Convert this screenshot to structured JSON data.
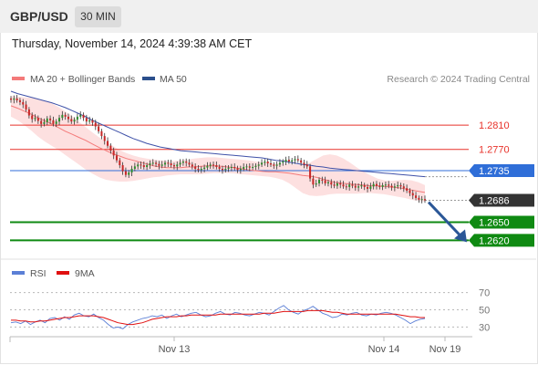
{
  "header": {
    "symbol": "GBP/USD",
    "timeframe": "30 MIN",
    "datetime": "Thursday, November 14, 2024 4:39:38 AM CET"
  },
  "colors": {
    "ma20": "#f47a7a",
    "bollinger_fill": "#fde0e0",
    "ma50": "#3f51a8",
    "ma50_legend": "#2b4f8c",
    "resistance": "#e8322a",
    "pivot": "#2f6ed8",
    "support": "#0f8a12",
    "current": "#333333",
    "candle_up": "#2f8c2f",
    "candle_down": "#c62828",
    "arrow": "#2b5797",
    "rsi": "#5b7fd6",
    "rsi_ma": "#e01010",
    "muted_text": "#888888"
  },
  "chart_data": [
    {
      "type": "candlestick",
      "title": "",
      "legend": [
        {
          "name": "MA 20 + Bollinger Bands",
          "color": "#f47a7a"
        },
        {
          "name": "MA 50",
          "color": "#2b4f8c"
        }
      ],
      "legend_position": "top-left",
      "watermark": "Research © 2024 Trading Central",
      "ylim": [
        1.2592,
        1.2884
      ],
      "x_ticks": [
        "Nov 13",
        "Nov 14",
        "Nov 19"
      ],
      "horizontal_levels": [
        {
          "label": "1.2810",
          "value": 1.281,
          "kind": "resistance"
        },
        {
          "label": "1.2770",
          "value": 1.277,
          "kind": "resistance"
        },
        {
          "label": "1.2735",
          "value": 1.2735,
          "kind": "pivot"
        },
        {
          "label": "1.2686",
          "value": 1.2686,
          "kind": "current"
        },
        {
          "label": "1.2650",
          "value": 1.265,
          "kind": "support"
        },
        {
          "label": "1.2620",
          "value": 1.262,
          "kind": "support"
        }
      ],
      "close": [
        1.2852,
        1.2854,
        1.2851,
        1.2848,
        1.2844,
        1.2836,
        1.2826,
        1.282,
        1.2822,
        1.2817,
        1.2812,
        1.2815,
        1.2821,
        1.2818,
        1.2812,
        1.2816,
        1.2822,
        1.2827,
        1.2824,
        1.282,
        1.2816,
        1.2819,
        1.2824,
        1.2827,
        1.2822,
        1.2816,
        1.2818,
        1.2814,
        1.2808,
        1.28,
        1.2792,
        1.2784,
        1.2776,
        1.2768,
        1.276,
        1.2752,
        1.2744,
        1.2734,
        1.2728,
        1.2732,
        1.2738,
        1.2742,
        1.2745,
        1.2744,
        1.2741,
        1.2744,
        1.2747,
        1.2748,
        1.2746,
        1.2743,
        1.2745,
        1.2748,
        1.2747,
        1.2744,
        1.2742,
        1.2745,
        1.2748,
        1.275,
        1.2748,
        1.2745,
        1.2742,
        1.2738,
        1.2736,
        1.2738,
        1.274,
        1.2743,
        1.2745,
        1.2744,
        1.2741,
        1.2738,
        1.2736,
        1.2738,
        1.274,
        1.2741,
        1.2739,
        1.2736,
        1.2738,
        1.2741,
        1.2742,
        1.274,
        1.2741,
        1.2743,
        1.2745,
        1.2748,
        1.275,
        1.2747,
        1.2745,
        1.2743,
        1.2745,
        1.2748,
        1.275,
        1.2753,
        1.275,
        1.2752,
        1.2754,
        1.2752,
        1.2748,
        1.2745,
        1.2742,
        1.2722,
        1.2712,
        1.2714,
        1.272,
        1.2719,
        1.2714,
        1.2716,
        1.2712,
        1.271,
        1.2714,
        1.2712,
        1.2709,
        1.2708,
        1.2712,
        1.271,
        1.2707,
        1.2709,
        1.2711,
        1.2708,
        1.2705,
        1.2709,
        1.2713,
        1.271,
        1.2708,
        1.2711,
        1.2712,
        1.271,
        1.2707,
        1.2709,
        1.2711,
        1.2709,
        1.2706,
        1.2702,
        1.2698,
        1.2694,
        1.269,
        1.2687,
        1.2688,
        1.2686
      ],
      "ma20": [
        1.2842,
        1.2838,
        1.2833,
        1.2828,
        1.2822,
        1.2817,
        1.2812,
        1.2806,
        1.28,
        1.2795,
        1.279,
        1.2785,
        1.2779,
        1.2773,
        1.2768,
        1.2763,
        1.2759,
        1.2755,
        1.2752,
        1.2749,
        1.2746,
        1.2743,
        1.2741,
        1.274,
        1.274,
        1.274,
        1.2741,
        1.2741,
        1.2742,
        1.2743,
        1.2743,
        1.2742,
        1.2741,
        1.274,
        1.2738,
        1.2736,
        1.2735,
        1.2734,
        1.2733,
        1.2733,
        1.2732,
        1.2731,
        1.2729,
        1.2727,
        1.2726,
        1.2724,
        1.2721,
        1.2718,
        1.2715,
        1.2714,
        1.2713,
        1.2712,
        1.2711,
        1.271,
        1.271,
        1.2709,
        1.2708,
        1.2707,
        1.2705,
        1.2703,
        1.2701,
        1.2699
      ],
      "ma50": [
        1.2866,
        1.2862,
        1.2859,
        1.2856,
        1.2853,
        1.285,
        1.2847,
        1.2843,
        1.2839,
        1.2834,
        1.2829,
        1.2824,
        1.2818,
        1.2813,
        1.2808,
        1.2803,
        1.2798,
        1.2793,
        1.2788,
        1.2784,
        1.278,
        1.2777,
        1.2774,
        1.2772,
        1.277,
        1.2768,
        1.2767,
        1.2766,
        1.2765,
        1.2764,
        1.2763,
        1.2762,
        1.2761,
        1.276,
        1.2759,
        1.2758,
        1.2757,
        1.2756,
        1.2754,
        1.2752,
        1.2751,
        1.2749,
        1.2747,
        1.2745,
        1.2744,
        1.2742,
        1.2741,
        1.2739,
        1.2738,
        1.2737,
        1.2736,
        1.2735,
        1.2734,
        1.2733,
        1.2732,
        1.2731,
        1.273,
        1.2729,
        1.2728,
        1.2727,
        1.2726,
        1.2725
      ],
      "bb_upper": [
        1.2858,
        1.2857,
        1.2856,
        1.2855,
        1.2853,
        1.285,
        1.2846,
        1.284,
        1.2833,
        1.2825,
        1.2816,
        1.2807,
        1.2798,
        1.279,
        1.2783,
        1.2776,
        1.2769,
        1.2764,
        1.276,
        1.2757,
        1.2755,
        1.2753,
        1.2752,
        1.2751,
        1.2751,
        1.2752,
        1.2753,
        1.2755,
        1.2756,
        1.2757,
        1.2757,
        1.2756,
        1.2755,
        1.2754,
        1.2753,
        1.2752,
        1.275,
        1.2749,
        1.2748,
        1.2747,
        1.2747,
        1.2746,
        1.2745,
        1.2745,
        1.2748,
        1.2754,
        1.276,
        1.2762,
        1.276,
        1.2755,
        1.2748,
        1.274,
        1.2733,
        1.2727,
        1.2722,
        1.2719,
        1.2718,
        1.2719,
        1.272,
        1.2719,
        1.2716,
        1.2711
      ],
      "bb_lower": [
        1.2824,
        1.2818,
        1.281,
        1.2801,
        1.2791,
        1.2783,
        1.2776,
        1.2769,
        1.2761,
        1.2753,
        1.2745,
        1.2737,
        1.273,
        1.2724,
        1.272,
        1.2718,
        1.2717,
        1.2717,
        1.2718,
        1.272,
        1.2722,
        1.2724,
        1.2725,
        1.2727,
        1.2728,
        1.2729,
        1.2729,
        1.2729,
        1.2729,
        1.273,
        1.2731,
        1.2731,
        1.2731,
        1.273,
        1.2729,
        1.2728,
        1.2727,
        1.2726,
        1.2725,
        1.2723,
        1.272,
        1.2714,
        1.2706,
        1.2698,
        1.2694,
        1.2693,
        1.2694,
        1.2696,
        1.2697,
        1.2697,
        1.2697,
        1.2697,
        1.2698,
        1.2698,
        1.2697,
        1.2696,
        1.2694,
        1.2692,
        1.269,
        1.2687,
        1.2685,
        1.2684
      ],
      "forecast_arrow": {
        "from": 1.2686,
        "to": 1.262
      }
    },
    {
      "type": "line",
      "title": "",
      "legend": [
        {
          "name": "RSI",
          "color": "#5b7fd6"
        },
        {
          "name": "9MA",
          "color": "#e01010"
        }
      ],
      "ylim": [
        22,
        78
      ],
      "y_ticks": [
        {
          "label": "70",
          "value": 70
        },
        {
          "label": "50",
          "value": 50
        },
        {
          "label": "30",
          "value": 30
        }
      ],
      "rsi": [
        35,
        36,
        34,
        37,
        33,
        36,
        38,
        35,
        40,
        41,
        38,
        42,
        39,
        44,
        46,
        43,
        42,
        45,
        41,
        38,
        33,
        29,
        30,
        28,
        33,
        36,
        38,
        40,
        41,
        43,
        42,
        44,
        40,
        43,
        45,
        42,
        44,
        46,
        47,
        44,
        42,
        43,
        46,
        48,
        45,
        44,
        47,
        46,
        44,
        43,
        45,
        47,
        46,
        44,
        48,
        52,
        55,
        50,
        47,
        45,
        49,
        51,
        54,
        50,
        46,
        44,
        41,
        42,
        45,
        44,
        46,
        47,
        44,
        43,
        45,
        44,
        46,
        47,
        46,
        44,
        41,
        38,
        34,
        37,
        39,
        40
      ],
      "ma9": [
        38,
        38,
        37,
        37,
        36,
        36,
        37,
        37,
        38,
        39,
        40,
        41,
        41,
        42,
        43,
        43,
        43,
        43,
        42,
        41,
        39,
        37,
        35,
        34,
        33,
        33,
        34,
        35,
        37,
        39,
        40,
        41,
        42,
        42,
        42,
        43,
        43,
        44,
        44,
        44,
        44,
        44,
        44,
        45,
        45,
        45,
        45,
        45,
        45,
        45,
        45,
        45,
        46,
        46,
        46,
        47,
        48,
        48,
        48,
        48,
        48,
        49,
        49,
        49,
        49,
        48,
        47,
        47,
        46,
        45,
        45,
        45,
        45,
        45,
        45,
        45,
        45,
        45,
        45,
        45,
        44,
        43,
        42,
        42,
        41,
        41
      ]
    }
  ]
}
